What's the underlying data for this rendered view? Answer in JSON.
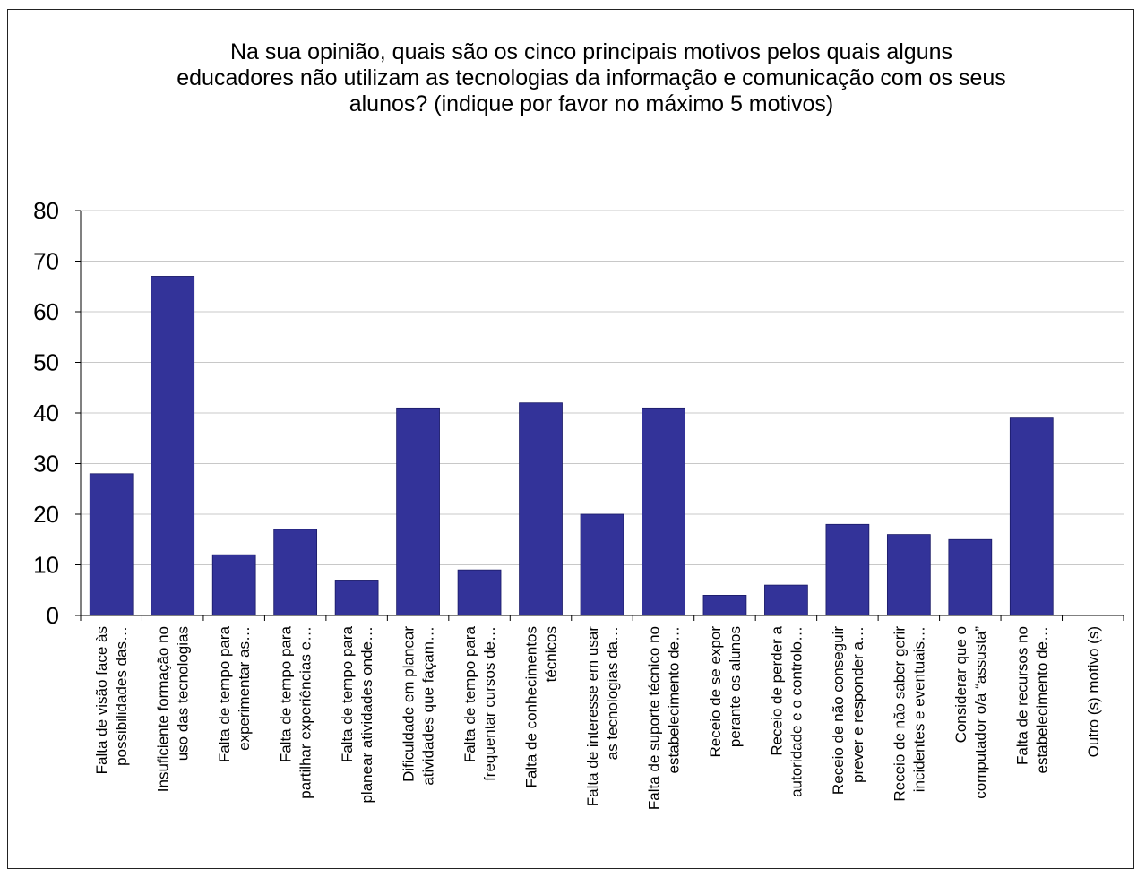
{
  "chart_data": {
    "type": "bar",
    "title_lines": [
      "Na sua opinião, quais são os cinco principais motivos pelos quais alguns",
      "educadores não utilizam as tecnologias da informação e comunicação com os seus",
      "alunos? (indique por favor no máximo 5 motivos)"
    ],
    "categories": [
      [
        "Falta de visão face às",
        "possibilidades das…"
      ],
      [
        "Insuficiente formação no",
        "uso das tecnologias"
      ],
      [
        "Falta de tempo para",
        "experimentar as…"
      ],
      [
        "Falta de tempo para",
        "partilhar experiências e…"
      ],
      [
        "Falta de tempo para",
        "planear atividades onde…"
      ],
      [
        "Dificuldade em planear",
        "atividades que façam…"
      ],
      [
        "Falta de tempo para",
        "frequentar cursos de…"
      ],
      [
        "Falta de conhecimentos",
        "técnicos"
      ],
      [
        "Falta de interesse em usar",
        "as tecnologias da…"
      ],
      [
        "Falta de suporte técnico no",
        "estabelecimento de…"
      ],
      [
        "Receio de se expor",
        "perante os alunos"
      ],
      [
        "Receio de perder a",
        "autoridade e o controlo…"
      ],
      [
        "Receio de não conseguir",
        "prever e responder a…"
      ],
      [
        "Receio de não saber gerir",
        "incidentes e eventuais…"
      ],
      [
        "Considerar que o",
        "computador o/a “assusta”"
      ],
      [
        "Falta de recursos no",
        "estabelecimento de…"
      ],
      [
        "Outro (s) motivo (s)"
      ]
    ],
    "values": [
      28,
      67,
      12,
      17,
      7,
      41,
      9,
      42,
      20,
      41,
      4,
      6,
      18,
      16,
      15,
      39,
      0
    ],
    "ylim": [
      0,
      80
    ],
    "yticks": [
      0,
      10,
      20,
      30,
      40,
      50,
      60,
      70,
      80
    ],
    "grid": true,
    "legend": "none",
    "bar_color": "#333399",
    "grid_color": "#c8c8c8"
  }
}
